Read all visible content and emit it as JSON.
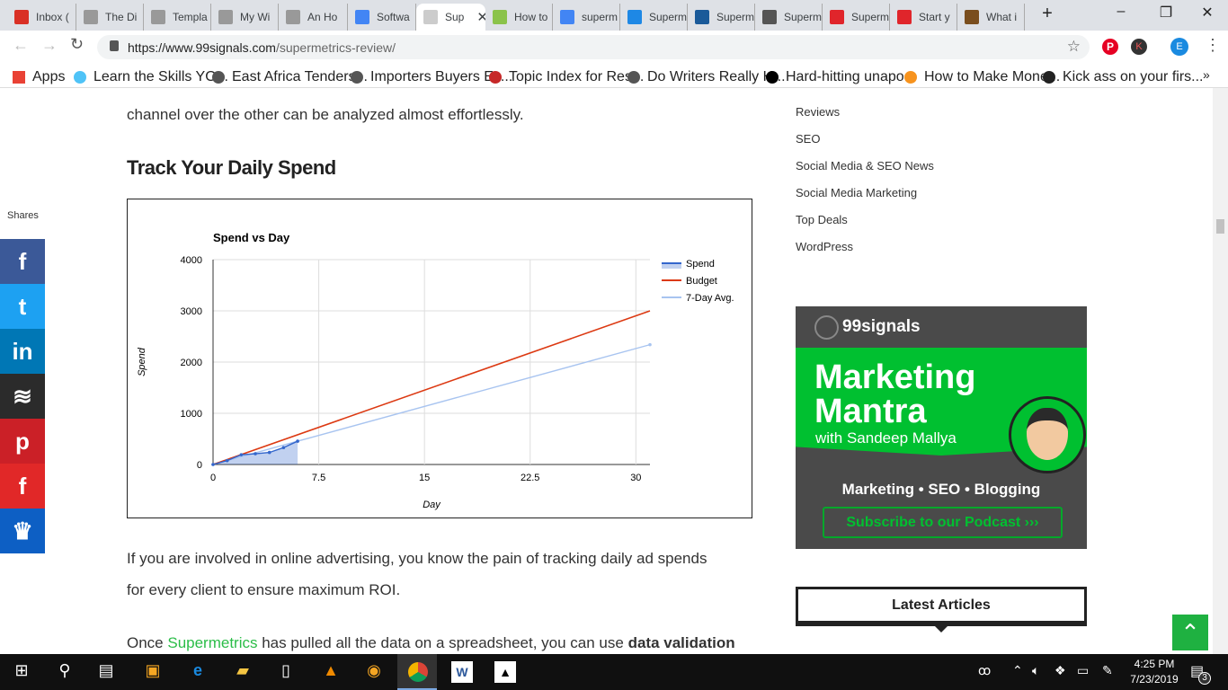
{
  "browser": {
    "tabs": [
      {
        "title": "Inbox (",
        "color": "#d93025"
      },
      {
        "title": "The Di",
        "color": "#999"
      },
      {
        "title": "Templa",
        "color": "#999"
      },
      {
        "title": "My Wi",
        "color": "#999"
      },
      {
        "title": "An Ho",
        "color": "#999"
      },
      {
        "title": "Softwa",
        "color": "#4285f4"
      },
      {
        "title": "Sup",
        "color": "#ccc",
        "active": true
      },
      {
        "title": "How to",
        "color": "#8bc34a"
      },
      {
        "title": "superm",
        "color": "#4285f4"
      },
      {
        "title": "Superm",
        "color": "#1e88e5"
      },
      {
        "title": "Superm",
        "color": "#1a5a99"
      },
      {
        "title": "Superm",
        "color": "#555"
      },
      {
        "title": "Superm",
        "color": "#e0252b"
      },
      {
        "title": "Start y",
        "color": "#e0252b"
      },
      {
        "title": "What i",
        "color": "#7a4e1e"
      }
    ],
    "new_tab": "+",
    "url_host": "https://www.99signals.com",
    "url_path": "/supermetrics-review/",
    "profile_initial": "E",
    "ext_initial": "K",
    "bookmarks": [
      "Apps",
      "Learn the Skills YO...",
      "East Africa Tenders...",
      "Importers Buyers Ex...",
      "Topic Index for Res...",
      "Do Writers Really H...",
      "Hard-hitting unapo...",
      "How to Make Mone...",
      "Kick ass on your firs..."
    ],
    "bookmarks_more": "»"
  },
  "article": {
    "intro": "channel over the other can be analyzed almost effortlessly.",
    "heading": "Track Your Daily Spend",
    "p1a": "If you are involved in online advertising, you know the pain of tracking daily ad spends",
    "p1b": "for every client to ensure maximum ROI.",
    "p2_start": "Once ",
    "p2_link": "Supermetrics",
    "p2_mid": " has pulled all the data on a spreadsheet, you can use ",
    "p2_bold": "data validation"
  },
  "share": {
    "label": "Shares",
    "buttons": [
      {
        "name": "facebook",
        "glyph": "f",
        "color": "#3b5998"
      },
      {
        "name": "twitter",
        "glyph": "t",
        "color": "#1da1f2"
      },
      {
        "name": "linkedin",
        "glyph": "in",
        "color": "#0077b5"
      },
      {
        "name": "buffer",
        "glyph": "≋",
        "color": "#2b2b2b"
      },
      {
        "name": "pinterest",
        "glyph": "p",
        "color": "#cb2027"
      },
      {
        "name": "flipboard",
        "glyph": "f",
        "color": "#e12828"
      },
      {
        "name": "sumo",
        "glyph": "♛",
        "color": "#0d5fc4"
      }
    ]
  },
  "sidebar": {
    "categories": [
      "Reviews",
      "SEO",
      "Social Media & SEO News",
      "Social Media Marketing",
      "Top Deals",
      "WordPress"
    ],
    "ad": {
      "brand": "99signals",
      "title1": "Marketing",
      "title2": "Mantra",
      "subtitle": "with Sandeep Mallya",
      "topics": "Marketing • SEO • Blogging",
      "cta": "Subscribe to our Podcast ›››",
      "green": "#00c030",
      "dark": "#4a4a4a"
    },
    "latest": "Latest Articles"
  },
  "chart_data": {
    "type": "line",
    "title": "Spend vs Day",
    "xlabel": "Day",
    "ylabel": "Spend",
    "xlim": [
      0,
      31
    ],
    "ylim": [
      0,
      4000
    ],
    "xticks": [
      "0",
      "7.5",
      "15",
      "22.5",
      "30"
    ],
    "yticks": [
      "0",
      "1000",
      "2000",
      "3000",
      "4000"
    ],
    "grid": true,
    "legend": "right",
    "series": [
      {
        "name": "Spend",
        "type": "area",
        "color": "#3366cc",
        "points": [
          [
            0,
            0
          ],
          [
            1,
            75
          ],
          [
            2,
            190
          ],
          [
            3,
            210
          ],
          [
            4,
            235
          ],
          [
            5,
            330
          ],
          [
            6,
            455
          ]
        ]
      },
      {
        "name": "Budget",
        "color": "#dc3912",
        "points": [
          [
            0,
            0
          ],
          [
            31,
            3000
          ]
        ]
      },
      {
        "name": "7-Day Avg.",
        "color": "#a8c4f0",
        "points": [
          [
            0,
            0
          ],
          [
            6,
            455
          ],
          [
            31,
            2340
          ]
        ]
      }
    ]
  },
  "taskbar": {
    "time": "4:25 PM",
    "date": "7/23/2019",
    "notifications": "3"
  }
}
